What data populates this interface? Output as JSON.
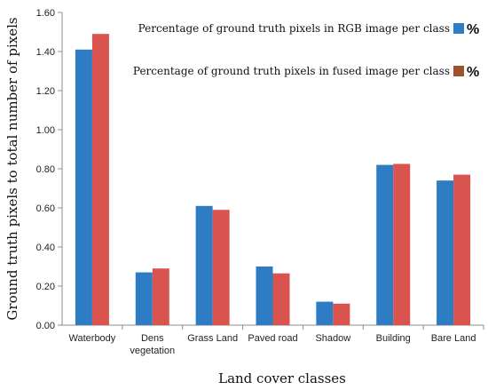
{
  "chart_data": {
    "type": "bar",
    "categories": [
      "Waterbody",
      "Dens vegetation",
      "Grass Land",
      "Paved road",
      "Shadow",
      "Building",
      "Bare Land"
    ],
    "category_lines": [
      [
        "Waterbody"
      ],
      [
        "Dens",
        "vegetation"
      ],
      [
        "Grass Land"
      ],
      [
        "Paved road"
      ],
      [
        "Shadow"
      ],
      [
        "Building"
      ],
      [
        "Bare Land"
      ]
    ],
    "series": [
      {
        "name": "Percentage of  ground truth pixels in RGB image per class",
        "values": [
          1.41,
          0.27,
          0.61,
          0.3,
          0.12,
          0.82,
          0.74
        ],
        "color": "#2e7cc4"
      },
      {
        "name": "Percentage of  ground truth pixels in fused image per class",
        "values": [
          1.49,
          0.29,
          0.59,
          0.265,
          0.11,
          0.825,
          0.77
        ],
        "color": "#d9534f"
      }
    ],
    "legend_symbols": [
      "%",
      "%"
    ],
    "legend_placement": "top-right",
    "xlabel": "Land cover classes",
    "ylabel": "Ground truth pixels to total number of pixels",
    "ylim": [
      0,
      1.6
    ],
    "yticks": [
      "0.00",
      "0.20",
      "0.40",
      "0.60",
      "0.80",
      "1.00",
      "1.20",
      "1.40",
      "1.60"
    ],
    "grid": false
  }
}
